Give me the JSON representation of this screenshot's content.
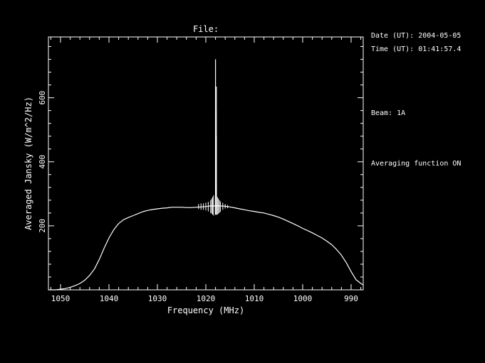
{
  "chart_data": {
    "type": "line",
    "title": "File:",
    "xlabel": "Frequency (MHz)",
    "ylabel": "Averaged Jansky (W/m^2/Hz)",
    "xlim": [
      1052.5,
      987.5
    ],
    "ylim": [
      0,
      790
    ],
    "x_axis_reversed": true,
    "x_ticks": [
      1050,
      1040,
      1030,
      1020,
      1010,
      1000,
      990
    ],
    "x_minor_step": 2,
    "y_ticks": [
      200,
      400,
      600
    ],
    "y_minor_step": 40,
    "grid": false,
    "colors": {
      "background": "#000000",
      "foreground": "#ffffff"
    },
    "series": [
      {
        "x": [
          1052.5,
          1051,
          1050,
          1049,
          1048,
          1047,
          1046,
          1045,
          1044,
          1043,
          1042,
          1041,
          1040,
          1039,
          1038,
          1037,
          1036,
          1035,
          1034,
          1033,
          1032,
          1031,
          1030,
          1029,
          1028,
          1027,
          1026,
          1025,
          1024,
          1023,
          1022,
          1021,
          1020,
          1019,
          1018,
          1017,
          1016,
          1015,
          1014,
          1013,
          1012,
          1011,
          1010,
          1009,
          1008,
          1007,
          1006,
          1005,
          1004,
          1003,
          1002,
          1001,
          1000,
          999,
          998,
          997,
          996,
          995,
          994,
          993,
          992,
          991,
          990,
          989,
          988,
          987.5
        ],
        "values": [
          0,
          0,
          2,
          4,
          8,
          13,
          20,
          30,
          45,
          65,
          95,
          130,
          162,
          188,
          207,
          219,
          226,
          232,
          238,
          244,
          248,
          251,
          253,
          255,
          256,
          258,
          258,
          258,
          257,
          257,
          258,
          259,
          260,
          262,
          262,
          262,
          261,
          259,
          256,
          253,
          250,
          247,
          245,
          242,
          240,
          236,
          232,
          227,
          221,
          214,
          207,
          200,
          192,
          185,
          178,
          170,
          162,
          152,
          141,
          126,
          108,
          85,
          57,
          32,
          20,
          15
        ]
      }
    ],
    "spike": {
      "x": 1018,
      "values": [
        720,
        635,
        560,
        480,
        400,
        330,
        240
      ]
    },
    "ripples": [
      {
        "x": 1021.5,
        "high": 268,
        "low": 252
      },
      {
        "x": 1021.0,
        "high": 270,
        "low": 250
      },
      {
        "x": 1020.5,
        "high": 270,
        "low": 250
      },
      {
        "x": 1020.0,
        "high": 272,
        "low": 248
      },
      {
        "x": 1019.5,
        "high": 275,
        "low": 245
      },
      {
        "x": 1019.0,
        "high": 280,
        "low": 240
      },
      {
        "x": 1018.8,
        "high": 285,
        "low": 238
      },
      {
        "x": 1018.6,
        "high": 290,
        "low": 235
      },
      {
        "x": 1018.4,
        "high": 295,
        "low": 232
      },
      {
        "x": 1017.6,
        "high": 290,
        "low": 235
      },
      {
        "x": 1017.4,
        "high": 285,
        "low": 238
      },
      {
        "x": 1017.2,
        "high": 280,
        "low": 240
      },
      {
        "x": 1017.0,
        "high": 276,
        "low": 244
      },
      {
        "x": 1016.5,
        "high": 272,
        "low": 250
      },
      {
        "x": 1016.0,
        "high": 268,
        "low": 254
      },
      {
        "x": 1015.5,
        "high": 265,
        "low": 255
      }
    ]
  },
  "info": {
    "date": "Date (UT): 2004-05-05",
    "time": "Time (UT): 01:41:57.4",
    "beam": "Beam: 1A",
    "averaging": "Averaging function ON"
  }
}
